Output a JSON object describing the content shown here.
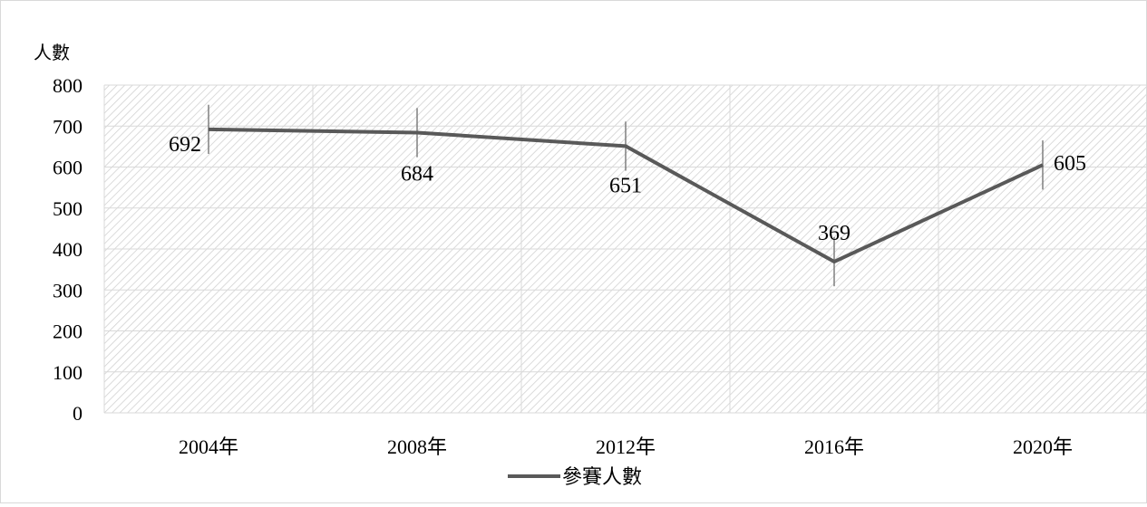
{
  "chart_data": {
    "type": "line",
    "title": "",
    "xlabel": "",
    "ylabel": "人數",
    "categories": [
      "2004年",
      "2008年",
      "2012年",
      "2016年",
      "2020年"
    ],
    "series": [
      {
        "name": "參賽人數",
        "values": [
          692,
          684,
          651,
          369,
          605
        ]
      }
    ],
    "error_bar": 60,
    "ylim": [
      0,
      800
    ],
    "yticks": [
      0,
      100,
      200,
      300,
      400,
      500,
      600,
      700,
      800
    ],
    "grid": true,
    "plot_background": "hatched",
    "legend": "bottom-center",
    "colors": {
      "line": "#595959",
      "grid": "#d9d9d9",
      "hatch": "#cfcfcf"
    }
  }
}
